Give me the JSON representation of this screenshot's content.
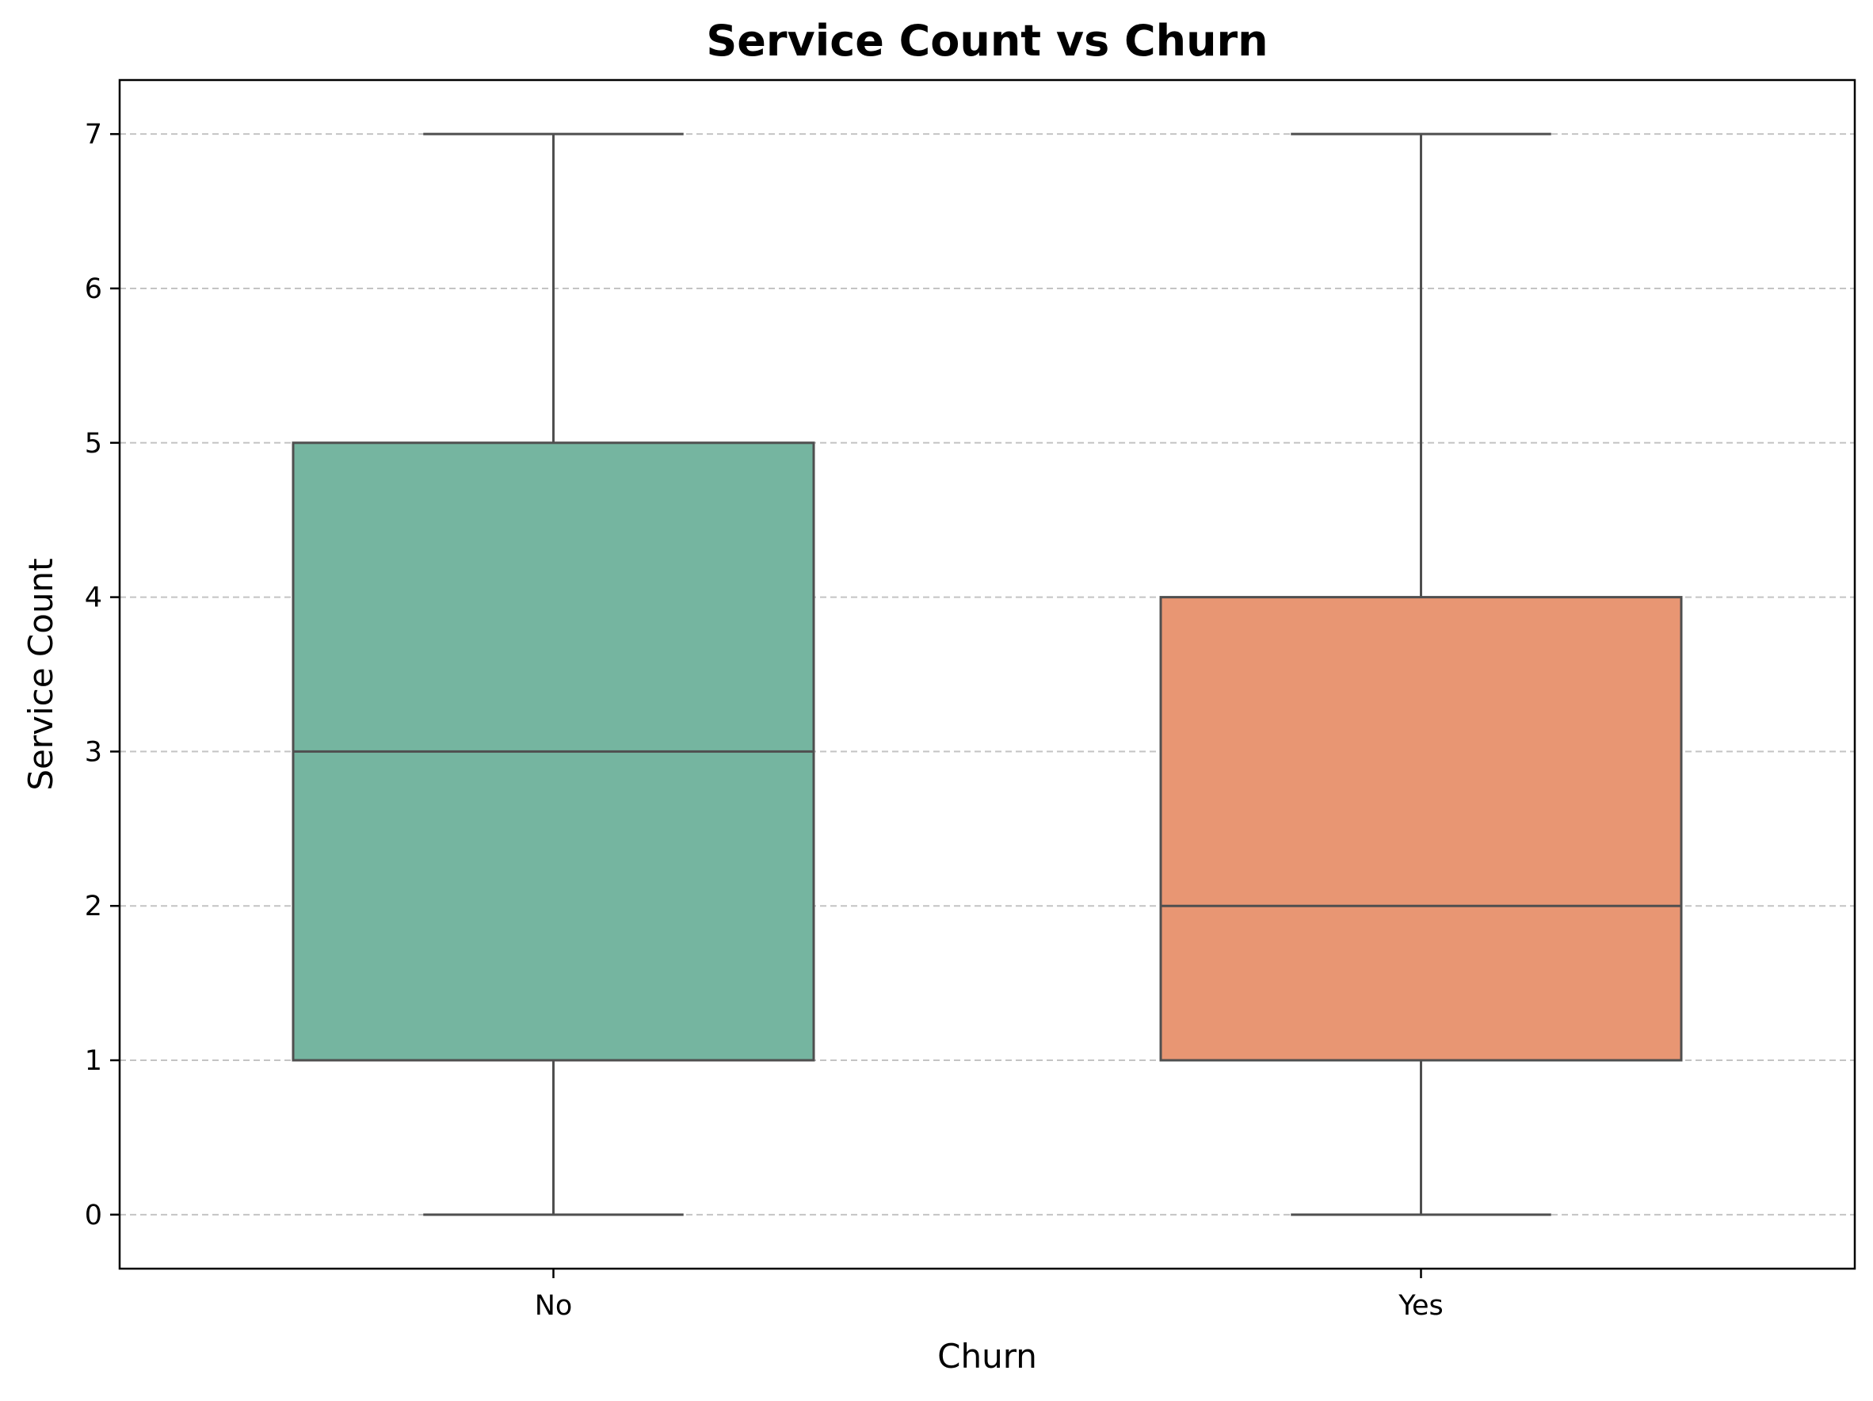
{
  "chart_data": {
    "type": "box",
    "title": "Service Count vs Churn",
    "xlabel": "Churn",
    "ylabel": "Service Count",
    "categories": [
      "No",
      "Yes"
    ],
    "ylim": [
      -0.35,
      7.35
    ],
    "yticks": [
      0,
      1,
      2,
      3,
      4,
      5,
      6,
      7
    ],
    "ytick_labels": [
      "0",
      "1",
      "2",
      "3",
      "4",
      "5",
      "6",
      "7"
    ],
    "grid": {
      "axis": "y",
      "style": "dashed"
    },
    "boxes": [
      {
        "category": "No",
        "whisker_low": 0,
        "q1": 1,
        "median": 3,
        "q3": 5,
        "whisker_high": 7,
        "color": "#75b5a0"
      },
      {
        "category": "Yes",
        "whisker_low": 0,
        "q1": 1,
        "median": 2,
        "q3": 4,
        "whisker_high": 7,
        "color": "#e89673"
      }
    ],
    "colors": {
      "box_edge": "#4f4f4f",
      "grid": "#c4c4c4",
      "axes": "#000000"
    }
  }
}
